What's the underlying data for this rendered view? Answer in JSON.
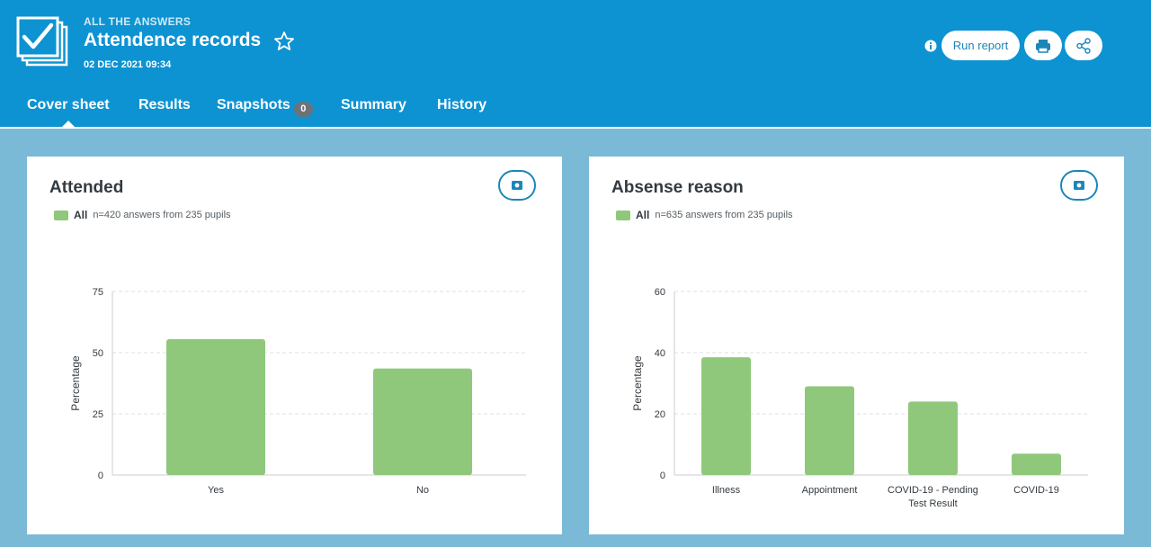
{
  "header": {
    "kicker": "ALL THE ANSWERS",
    "title": "Attendence records",
    "date": "02 DEC 2021 09:34",
    "run_report_label": "Run report",
    "icons": [
      "app-checklist-icon",
      "star-icon",
      "info-icon",
      "print-icon",
      "share-icon"
    ],
    "colors": {
      "header_bg": "#0d93d2",
      "page_bg": "#7bbad6",
      "accent": "#1c86b9",
      "bar": "#8fc87b"
    }
  },
  "tabs": [
    {
      "label": "Cover sheet",
      "active": true
    },
    {
      "label": "Results"
    },
    {
      "label": "Snapshots",
      "badge": "0"
    },
    {
      "label": "Summary"
    },
    {
      "label": "History"
    }
  ],
  "cards": [
    {
      "title": "Attended",
      "legend_name": "All",
      "legend_note": "n=420 answers from 235 pupils"
    },
    {
      "title": "Absense reason",
      "legend_name": "All",
      "legend_note": "n=635 answers from 235 pupils"
    }
  ],
  "chart_data": [
    {
      "type": "bar",
      "title": "Attended",
      "categories": [
        "Yes",
        "No"
      ],
      "series": [
        {
          "name": "All",
          "values": [
            55.5,
            43.5
          ]
        }
      ],
      "ylabel": "Percentage",
      "ylim": [
        0,
        75
      ],
      "yticks": [
        0,
        25,
        50,
        75
      ],
      "grid": true
    },
    {
      "type": "bar",
      "title": "Absense reason",
      "categories": [
        "Illness",
        "Appointment",
        "COVID-19 - Pending Test Result",
        "COVID-19"
      ],
      "series": [
        {
          "name": "All",
          "values": [
            38.5,
            29,
            24,
            7
          ]
        }
      ],
      "ylabel": "Percentage",
      "ylim": [
        0,
        60
      ],
      "yticks": [
        0,
        20,
        40,
        60
      ],
      "grid": true
    }
  ]
}
